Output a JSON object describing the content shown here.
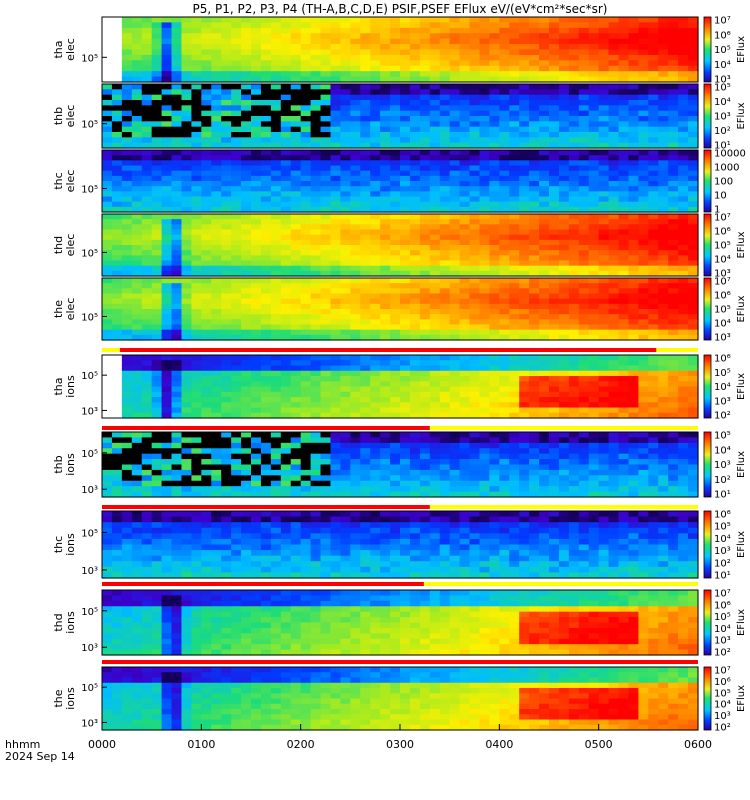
{
  "figure": {
    "title": "P5, P1, P2, P3, P4 (TH-A,B,C,D,E) PSIF,PSEF EFlux eV/(eV*cm²*sec*sr)",
    "time_axis_label": "hhmm",
    "date_label": "2024 Sep 14",
    "time_ticks": [
      "0000",
      "0100",
      "0200",
      "0300",
      "0400",
      "0500",
      "0600"
    ],
    "colorbar_unit": "EFlux"
  },
  "chart_data": {
    "type": "heatmap",
    "title": "P5, P1, P2, P3, P4 (TH-A,B,C,D,E) PSIF,PSEF EFlux eV/(eV*cm²*sec*sr)",
    "x": {
      "label": "hhmm",
      "range": [
        "0000",
        "0600"
      ],
      "ticks": [
        "0000",
        "0100",
        "0200",
        "0300",
        "0400",
        "0500",
        "0600"
      ]
    },
    "y_scale": "log",
    "panels": [
      {
        "id": "tha_elec",
        "label_lines": [
          "tha",
          "elec"
        ],
        "ytick_labels": [
          "10⁵"
        ],
        "colorbar_ticks": [
          "10⁷",
          "10⁶",
          "10⁵",
          "10⁴",
          "10³"
        ],
        "colorbar_label": "EFlux",
        "profile": "elec",
        "data_start": 0.03,
        "data_gap": null,
        "dip": 0.11
      },
      {
        "id": "thb_elec",
        "label_lines": [
          "thb",
          "elec"
        ],
        "ytick_labels": [
          "10⁵"
        ],
        "colorbar_ticks": [
          "10⁵",
          "10⁴",
          "10³",
          "10²",
          "10¹"
        ],
        "colorbar_label": "EFlux",
        "profile": "low",
        "data_start": 0.0,
        "data_gap": [
          0.0,
          0.39
        ],
        "dip": null
      },
      {
        "id": "thc_elec",
        "label_lines": [
          "thc",
          "elec"
        ],
        "ytick_labels": [
          "10⁵"
        ],
        "colorbar_ticks": [
          "10000",
          "1000",
          "100",
          "10",
          "1"
        ],
        "colorbar_label": "",
        "profile": "low",
        "data_start": 0.0,
        "data_gap": null,
        "dip": null
      },
      {
        "id": "thd_elec",
        "label_lines": [
          "thd",
          "elec"
        ],
        "ytick_labels": [
          "10⁵"
        ],
        "colorbar_ticks": [
          "10⁷",
          "10⁶",
          "10⁵",
          "10⁴",
          "10³"
        ],
        "colorbar_label": "EFlux",
        "profile": "elec",
        "data_start": 0.0,
        "data_gap": null,
        "dip": 0.12
      },
      {
        "id": "the_elec",
        "label_lines": [
          "the",
          "elec"
        ],
        "ytick_labels": [
          "10⁵"
        ],
        "colorbar_ticks": [
          "10⁷",
          "10⁶",
          "10⁵",
          "10⁴",
          "10³"
        ],
        "colorbar_label": "EFlux",
        "profile": "elec",
        "data_start": 0.0,
        "data_gap": null,
        "dip": 0.12
      },
      {
        "id": "tha_ions",
        "label_lines": [
          "tha",
          "ions"
        ],
        "ytick_labels": [
          "10⁵",
          "10³"
        ],
        "colorbar_ticks": [
          "10⁶",
          "10⁵",
          "10⁴",
          "10³",
          "10²"
        ],
        "colorbar_label": "EFlux",
        "profile": "ions",
        "data_start": 0.03,
        "data_gap": null,
        "dip": 0.11
      },
      {
        "id": "thb_ions",
        "label_lines": [
          "thb",
          "ions"
        ],
        "ytick_labels": [
          "10⁵",
          "10³"
        ],
        "colorbar_ticks": [
          "10⁵",
          "10⁴",
          "10³",
          "10²",
          "10¹"
        ],
        "colorbar_label": "EFlux",
        "profile": "low",
        "data_start": 0.0,
        "data_gap": [
          0.0,
          0.39
        ],
        "dip": null
      },
      {
        "id": "thc_ions",
        "label_lines": [
          "thc",
          "ions"
        ],
        "ytick_labels": [
          "10⁵",
          "10³"
        ],
        "colorbar_ticks": [
          "10⁶",
          "10⁵",
          "10⁴",
          "10³",
          "10²",
          "10¹"
        ],
        "colorbar_label": "EFlux",
        "profile": "low",
        "data_start": 0.0,
        "data_gap": null,
        "dip": null
      },
      {
        "id": "thd_ions",
        "label_lines": [
          "thd",
          "ions"
        ],
        "ytick_labels": [
          "10⁵",
          "10³"
        ],
        "colorbar_ticks": [
          "10⁷",
          "10⁶",
          "10⁵",
          "10⁴",
          "10³",
          "10²"
        ],
        "colorbar_label": "EFlux",
        "profile": "ions",
        "data_start": 0.0,
        "data_gap": null,
        "dip": 0.12
      },
      {
        "id": "the_ions",
        "label_lines": [
          "the",
          "ions"
        ],
        "ytick_labels": [
          "10⁵",
          "10³"
        ],
        "colorbar_ticks": [
          "10⁷",
          "10⁶",
          "10⁵",
          "10⁴",
          "10³",
          "10²"
        ],
        "colorbar_label": "EFlux",
        "profile": "ions",
        "data_start": 0.0,
        "data_gap": null,
        "dip": 0.12
      }
    ],
    "mode_bars": [
      {
        "after_panel": "the_elec",
        "red_fraction": [
          0.03,
          0.93
        ],
        "color_rest": "#ffff00"
      },
      {
        "after_panel": "tha_ions",
        "red_fraction": [
          0.0,
          0.55
        ],
        "color_rest": "#ffff00"
      },
      {
        "after_panel": "thb_ions",
        "red_fraction": [
          0.0,
          0.55
        ],
        "color_rest": "#ffff00"
      },
      {
        "after_panel": "thc_ions",
        "red_fraction": [
          0.0,
          0.54
        ],
        "color_rest": "#ffff00"
      },
      {
        "after_panel": "thd_ions",
        "red_fraction": [
          0.0,
          1.0
        ],
        "color_rest": "#ffff00"
      }
    ]
  }
}
